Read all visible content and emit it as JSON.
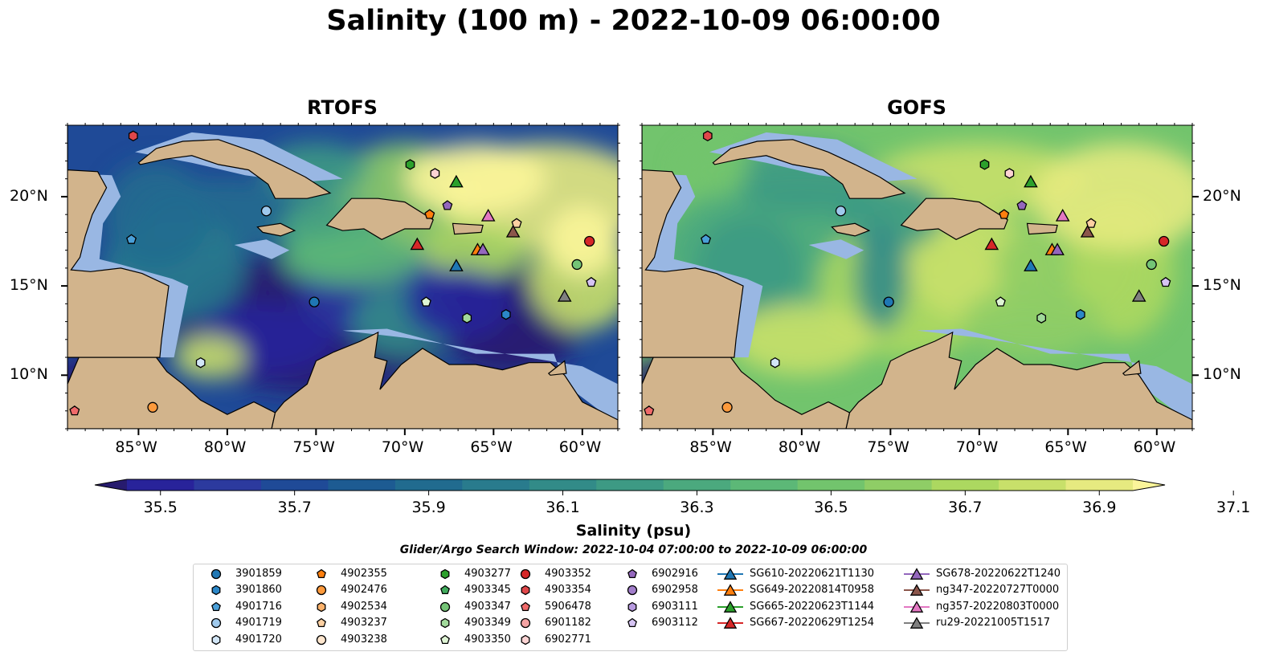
{
  "title": "Salinity (100 m) - 2022-10-09 06:00:00",
  "panels": [
    {
      "title": "RTOFS",
      "shading": "rtofs"
    },
    {
      "title": "GOFS",
      "shading": "gofs"
    }
  ],
  "map_extent": {
    "lon": [
      -89,
      -58
    ],
    "lat": [
      7,
      24
    ]
  },
  "lon_ticks": [
    "85°W",
    "80°W",
    "75°W",
    "70°W",
    "65°W",
    "60°W"
  ],
  "lon_tick_values": [
    -85,
    -80,
    -75,
    -70,
    -65,
    -60
  ],
  "lat_ticks": [
    "20°N",
    "15°N",
    "10°N"
  ],
  "lat_tick_values": [
    20,
    15,
    10
  ],
  "colorbar": {
    "label": "Salinity (psu)",
    "ticks": [
      "35.5",
      "35.7",
      "35.9",
      "36.1",
      "36.3",
      "36.5",
      "36.7",
      "36.9",
      "37.1"
    ],
    "min": 35.4,
    "max": 37.1,
    "step": 0.1,
    "colors": [
      "#271b6e",
      "#28239a",
      "#2c3a9e",
      "#1f4a97",
      "#1d5b92",
      "#216b8f",
      "#297b8d",
      "#328b88",
      "#3d9a84",
      "#4ba97e",
      "#5cb877",
      "#72c46d",
      "#8fcd66",
      "#acd860",
      "#c8e06a",
      "#e6ea80",
      "#fbf59a"
    ]
  },
  "search_window": "Glider/Argo Search Window: 2022-10-04 07:00:00 to 2022-10-09 06:00:00",
  "land_color": "#d2b48c",
  "shallow_color": "#99b7e3",
  "legend": {
    "columns": [
      [
        {
          "label": "3901859",
          "marker": "circle",
          "color": "#1f77b4"
        },
        {
          "label": "3901860",
          "marker": "hexagon",
          "color": "#2b87c8"
        },
        {
          "label": "4901716",
          "marker": "pentagon",
          "color": "#4a9fd8"
        },
        {
          "label": "4901719",
          "marker": "circle",
          "color": "#9fc9ec"
        },
        {
          "label": "4901720",
          "marker": "hexagon",
          "color": "#d2e6f7"
        }
      ],
      [
        {
          "label": "4902355",
          "marker": "pentagon",
          "color": "#ff7f0e"
        },
        {
          "label": "4902476",
          "marker": "circle",
          "color": "#fd9a3c"
        },
        {
          "label": "4902534",
          "marker": "hexagon",
          "color": "#fdb26b"
        },
        {
          "label": "4903237",
          "marker": "pentagon",
          "color": "#fdd0a2"
        },
        {
          "label": "4903238",
          "marker": "circle",
          "color": "#fee6ce"
        }
      ],
      [
        {
          "label": "4903277",
          "marker": "hexagon",
          "color": "#2ca02c"
        },
        {
          "label": "4903345",
          "marker": "pentagon",
          "color": "#41ab5d"
        },
        {
          "label": "4903347",
          "marker": "circle",
          "color": "#74c476"
        },
        {
          "label": "4903349",
          "marker": "hexagon",
          "color": "#a1d99b"
        },
        {
          "label": "4903350",
          "marker": "pentagon",
          "color": "#dff5d5"
        }
      ],
      [
        {
          "label": "4903352",
          "marker": "circle",
          "color": "#d62728"
        },
        {
          "label": "4903354",
          "marker": "hexagon",
          "color": "#e0474a"
        },
        {
          "label": "5906478",
          "marker": "pentagon",
          "color": "#ef6a6a"
        },
        {
          "label": "6901182",
          "marker": "circle",
          "color": "#f4a3a3"
        },
        {
          "label": "6902771",
          "marker": "hexagon",
          "color": "#fcd3d3"
        }
      ],
      [
        {
          "label": "6902916",
          "marker": "pentagon",
          "color": "#9467bd"
        },
        {
          "label": "6902958",
          "marker": "circle",
          "color": "#a27ecb"
        },
        {
          "label": "6903111",
          "marker": "hexagon",
          "color": "#b89be0"
        },
        {
          "label": "6903112",
          "marker": "pentagon",
          "color": "#d6c4f3"
        }
      ],
      [
        {
          "label": "SG610-20220621T1130",
          "marker": "triangle",
          "color": "#1f77b4"
        },
        {
          "label": "SG649-20220814T0958",
          "marker": "triangle",
          "color": "#ff7f0e"
        },
        {
          "label": "SG665-20220623T1144",
          "marker": "triangle",
          "color": "#2ca02c"
        },
        {
          "label": "SG667-20220629T1254",
          "marker": "triangle",
          "color": "#d62728"
        }
      ],
      [
        {
          "label": "SG678-20220622T1240",
          "marker": "triangle",
          "color": "#9467bd"
        },
        {
          "label": "ng347-20220727T0000",
          "marker": "triangle",
          "color": "#8c564b"
        },
        {
          "label": "ng357-20220803T0000",
          "marker": "triangle",
          "color": "#e377c2"
        },
        {
          "label": "ru29-20221005T1517",
          "marker": "triangle",
          "color": "#7f7f7f"
        }
      ]
    ]
  },
  "platforms": [
    {
      "label": "3901859",
      "lon": -75.1,
      "lat": 14.1
    },
    {
      "label": "3901860",
      "lon": -64.3,
      "lat": 13.4
    },
    {
      "label": "4901716",
      "lon": -85.4,
      "lat": 17.6
    },
    {
      "label": "4901719",
      "lon": -77.8,
      "lat": 19.2
    },
    {
      "label": "4901720",
      "lon": -81.5,
      "lat": 10.7
    },
    {
      "label": "4902355",
      "lon": -68.6,
      "lat": 19.0
    },
    {
      "label": "4902476",
      "lon": -84.2,
      "lat": 8.2
    },
    {
      "label": "4903237",
      "lon": -63.7,
      "lat": 18.5
    },
    {
      "label": "4903277",
      "lon": -69.7,
      "lat": 21.8
    },
    {
      "label": "4903347",
      "lon": -60.3,
      "lat": 16.2
    },
    {
      "label": "4903349",
      "lon": -66.5,
      "lat": 13.2
    },
    {
      "label": "4903350",
      "lon": -68.8,
      "lat": 14.1
    },
    {
      "label": "4903352",
      "lon": -59.6,
      "lat": 17.5
    },
    {
      "label": "4903354",
      "lon": -85.3,
      "lat": 23.4
    },
    {
      "label": "5906478",
      "lon": -88.6,
      "lat": 8.0
    },
    {
      "label": "6902771",
      "lon": -68.3,
      "lat": 21.3
    },
    {
      "label": "6902916",
      "lon": -67.6,
      "lat": 19.5
    },
    {
      "label": "6903112",
      "lon": -59.5,
      "lat": 15.2
    },
    {
      "label": "SG610-20220621T1130",
      "lon": -67.1,
      "lat": 16.1
    },
    {
      "label": "SG649-20220814T0958",
      "lon": -65.9,
      "lat": 17.0
    },
    {
      "label": "SG665-20220623T1144",
      "lon": -67.1,
      "lat": 20.8
    },
    {
      "label": "SG667-20220629T1254",
      "lon": -69.3,
      "lat": 17.3
    },
    {
      "label": "SG678-20220622T1240",
      "lon": -65.6,
      "lat": 17.0
    },
    {
      "label": "ng347-20220727T0000",
      "lon": -63.9,
      "lat": 18.0
    },
    {
      "label": "ng357-20220803T0000",
      "lon": -65.3,
      "lat": 18.9
    },
    {
      "label": "ru29-20221005T1517",
      "lon": -61.0,
      "lat": 14.4
    }
  ]
}
